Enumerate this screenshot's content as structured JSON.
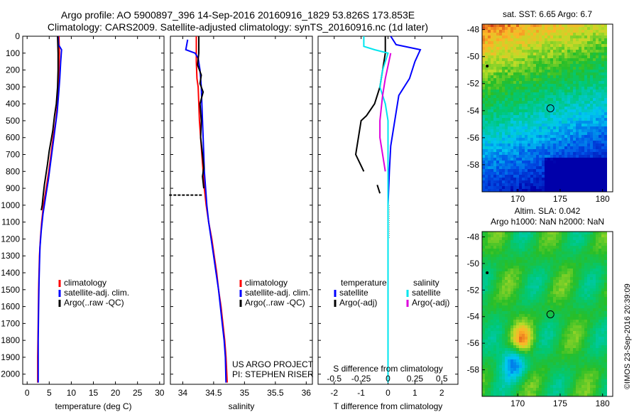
{
  "header": {
    "line1": "Argo profile: AO 5900897_396 14-Sep-2016 20160916_1829 53.826S 173.853E",
    "line2": "Climatology: CARS2009. Satellite-adjusted climatology: synTS_20160916.nc (1d later)"
  },
  "credit": {
    "project": "US ARGO PROJECT",
    "pi": "PI: STEPHEN RISER",
    "stamp": "©IMOS 23-Sep-2016 20:39:09"
  },
  "colors": {
    "climatology": "#ff0000",
    "satellite": "#0000ff",
    "argo": "#000000",
    "sat_sal": "#00e5ee",
    "argo_sal": "#dd00dd"
  },
  "chart_data": [
    {
      "type": "line",
      "id": "temperature",
      "xlabel": "temperature (deg C)",
      "ylabel": "",
      "xlim": [
        -1,
        31
      ],
      "ylim": [
        2060,
        0
      ],
      "xticks": [
        0,
        5,
        10,
        15,
        20,
        25,
        30
      ],
      "yticks": [
        0,
        100,
        200,
        300,
        400,
        500,
        600,
        700,
        800,
        900,
        1000,
        1100,
        1200,
        1300,
        1400,
        1500,
        1600,
        1700,
        1800,
        1900,
        2000
      ],
      "legend": [
        "climatology",
        "satellite-adj. clim.",
        "Argo(..raw -QC)"
      ],
      "series": [
        {
          "name": "climatology",
          "color": "#ff0000",
          "points": [
            [
              7.2,
              0
            ],
            [
              7.3,
              100
            ],
            [
              7.2,
              200
            ],
            [
              7.1,
              300
            ],
            [
              6.9,
              400
            ],
            [
              6.5,
              500
            ],
            [
              5.9,
              600
            ],
            [
              5.4,
              700
            ],
            [
              4.9,
              800
            ],
            [
              4.3,
              900
            ],
            [
              3.7,
              1000
            ],
            [
              3.3,
              1100
            ],
            [
              3.0,
              1200
            ],
            [
              2.8,
              1300
            ],
            [
              2.7,
              1400
            ],
            [
              2.6,
              1500
            ],
            [
              2.5,
              1700
            ],
            [
              2.4,
              1900
            ],
            [
              2.4,
              2050
            ]
          ]
        },
        {
          "name": "satellite-adj. clim.",
          "color": "#0000ff",
          "points": [
            [
              7.0,
              0
            ],
            [
              7.1,
              50
            ],
            [
              7.8,
              80
            ],
            [
              7.6,
              150
            ],
            [
              7.4,
              250
            ],
            [
              7.1,
              350
            ],
            [
              6.8,
              450
            ],
            [
              6.3,
              550
            ],
            [
              5.8,
              650
            ],
            [
              5.3,
              750
            ],
            [
              4.8,
              850
            ],
            [
              4.2,
              950
            ],
            [
              3.6,
              1050
            ],
            [
              3.2,
              1150
            ],
            [
              2.9,
              1250
            ],
            [
              2.8,
              1350
            ],
            [
              2.7,
              1450
            ],
            [
              2.6,
              1600
            ],
            [
              2.5,
              1800
            ],
            [
              2.5,
              2050
            ]
          ]
        },
        {
          "name": "Argo(..raw -QC)",
          "color": "#000000",
          "points": [
            [
              6.9,
              0
            ],
            [
              7.0,
              100
            ],
            [
              7.0,
              200
            ],
            [
              6.9,
              300
            ],
            [
              6.6,
              400
            ],
            [
              6.2,
              470
            ],
            [
              5.8,
              560
            ],
            [
              5.4,
              620
            ],
            [
              5.0,
              680
            ],
            [
              4.6,
              760
            ],
            [
              4.2,
              830
            ],
            [
              3.9,
              880
            ],
            [
              3.6,
              950
            ],
            [
              3.4,
              1000
            ],
            [
              3.2,
              1030
            ]
          ]
        }
      ]
    },
    {
      "type": "line",
      "id": "salinity",
      "xlabel": "salinity",
      "ylabel": "",
      "xlim": [
        33.8,
        36.1
      ],
      "ylim": [
        2060,
        0
      ],
      "xticks": [
        34,
        34.5,
        35,
        35.5,
        36
      ],
      "legend": [
        "climatology",
        "satellite-adj. clim.",
        "Argo(..raw -QC)"
      ],
      "series": [
        {
          "name": "climatology",
          "color": "#ff0000",
          "points": [
            [
              34.22,
              0
            ],
            [
              34.22,
              100
            ],
            [
              34.22,
              150
            ],
            [
              34.23,
              250
            ],
            [
              34.25,
              300
            ],
            [
              34.26,
              400
            ],
            [
              34.27,
              500
            ],
            [
              34.29,
              600
            ],
            [
              34.31,
              700
            ],
            [
              34.33,
              800
            ],
            [
              34.35,
              900
            ],
            [
              34.38,
              1000
            ],
            [
              34.42,
              1100
            ],
            [
              34.47,
              1200
            ],
            [
              34.51,
              1300
            ],
            [
              34.55,
              1400
            ],
            [
              34.58,
              1500
            ],
            [
              34.62,
              1600
            ],
            [
              34.65,
              1700
            ],
            [
              34.68,
              1800
            ],
            [
              34.7,
              1900
            ],
            [
              34.72,
              2050
            ]
          ]
        },
        {
          "name": "satellite-adj. clim.",
          "color": "#0000ff",
          "points": [
            [
              34.08,
              20
            ],
            [
              34.05,
              80
            ],
            [
              34.2,
              100
            ],
            [
              34.25,
              130
            ],
            [
              34.28,
              200
            ],
            [
              34.3,
              300
            ],
            [
              34.31,
              400
            ],
            [
              34.32,
              500
            ],
            [
              34.33,
              600
            ],
            [
              34.34,
              700
            ],
            [
              34.35,
              800
            ],
            [
              34.37,
              900
            ],
            [
              34.39,
              1000
            ],
            [
              34.42,
              1100
            ],
            [
              34.46,
              1200
            ],
            [
              34.5,
              1300
            ],
            [
              34.54,
              1400
            ],
            [
              34.58,
              1500
            ],
            [
              34.61,
              1600
            ],
            [
              34.64,
              1700
            ],
            [
              34.67,
              1800
            ],
            [
              34.69,
              1900
            ],
            [
              34.7,
              2050
            ]
          ]
        },
        {
          "name": "Argo(..raw -QC)",
          "color": "#000000",
          "points": [
            [
              34.26,
              0
            ],
            [
              34.26,
              100
            ],
            [
              34.24,
              170
            ],
            [
              34.3,
              230
            ],
            [
              34.28,
              280
            ],
            [
              34.33,
              330
            ],
            [
              34.28,
              400
            ],
            [
              34.3,
              500
            ],
            [
              34.29,
              600
            ],
            [
              34.32,
              700
            ],
            [
              34.34,
              780
            ],
            [
              34.32,
              830
            ],
            [
              34.34,
              900
            ]
          ]
        },
        {
          "name": "Argo-outlier",
          "color": "#000000",
          "points": [
            [
              33.78,
              940
            ],
            [
              33.95,
              940
            ],
            [
              34.1,
              940
            ],
            [
              34.32,
              940
            ]
          ]
        }
      ]
    },
    {
      "type": "line",
      "id": "difference",
      "xlabel": "T difference from climatology",
      "xlabel2": "S difference from climatology",
      "ylabel": "",
      "xlim": [
        -2.6,
        2.6
      ],
      "ylim": [
        2060,
        0
      ],
      "xticks": [
        -2,
        -1,
        0,
        1,
        2
      ],
      "xticks2": [
        "-0.5",
        "-0.25",
        "0",
        "0.25",
        "0.5"
      ],
      "xticks2_pos": [
        -2,
        -1,
        0,
        1,
        2
      ],
      "legend_headers": [
        "temperature",
        "salinity"
      ],
      "legend": [
        "satellite",
        "Argo(-adj)",
        "satellite",
        "Argo(-adj)"
      ],
      "series": [
        {
          "name": "satellite",
          "color": "#0000ff",
          "points": [
            [
              0.1,
              0
            ],
            [
              0.3,
              50
            ],
            [
              1.2,
              80
            ],
            [
              1.0,
              150
            ],
            [
              0.8,
              250
            ],
            [
              0.4,
              350
            ],
            [
              0.3,
              450
            ],
            [
              0.2,
              550
            ],
            [
              0.1,
              650
            ],
            [
              0.05,
              800
            ],
            [
              0,
              1000
            ],
            [
              0,
              1200
            ],
            [
              0,
              1400
            ],
            [
              0,
              1600
            ],
            [
              0,
              1800
            ],
            [
              0,
              2050
            ]
          ]
        },
        {
          "name": "Argo(-adj)",
          "color": "#000000",
          "points": [
            [
              -0.1,
              0
            ],
            [
              -0.1,
              100
            ],
            [
              -0.2,
              200
            ],
            [
              -0.3,
              300
            ],
            [
              -0.5,
              400
            ],
            [
              -0.8,
              470
            ],
            [
              -1.0,
              500
            ],
            [
              -1.1,
              600
            ],
            [
              -1.2,
              700
            ],
            [
              -0.9,
              800
            ]
          ]
        },
        {
          "name": "Argo-adj-b",
          "color": "#000000",
          "points": [
            [
              -0.4,
              880
            ],
            [
              -0.3,
              930
            ]
          ]
        },
        {
          "name": "satellite",
          "color": "#00e5ee",
          "points": [
            [
              -0.9,
              0
            ],
            [
              -0.9,
              60
            ],
            [
              -0.5,
              80
            ],
            [
              0.0,
              100
            ],
            [
              -0.2,
              200
            ],
            [
              -0.3,
              300
            ],
            [
              -0.1,
              400
            ],
            [
              0,
              500
            ],
            [
              0,
              700
            ],
            [
              0,
              900
            ],
            [
              0,
              1200
            ],
            [
              0,
              1600
            ],
            [
              0,
              2050
            ]
          ]
        },
        {
          "name": "Argo(-adj)",
          "color": "#dd00dd",
          "points": [
            [
              0.1,
              100
            ],
            [
              -0.1,
              250
            ],
            [
              -0.2,
              350
            ],
            [
              -0.3,
              500
            ],
            [
              -0.3,
              600
            ],
            [
              -0.2,
              700
            ],
            [
              -0.1,
              800
            ]
          ]
        }
      ]
    },
    {
      "type": "heatmap",
      "id": "sst-map",
      "title": "sat. SST: 6.65 Argo: 6.7",
      "xticks": [
        170,
        175,
        180
      ],
      "yticks": [
        -48,
        -50,
        -52,
        -54,
        -56,
        -58
      ],
      "xlim": [
        165.8,
        181.2
      ],
      "ylim": [
        -60,
        -47.6
      ],
      "marker": [
        173.853,
        -53.826
      ]
    },
    {
      "type": "heatmap",
      "id": "sla-map",
      "title": "Altim. SLA: 0.042",
      "subtitle": "Argo h1000: NaN h2000: NaN",
      "xticks": [
        170,
        175,
        180
      ],
      "yticks": [
        -48,
        -50,
        -52,
        -54,
        -56,
        -58
      ],
      "xlim": [
        165.8,
        181.2
      ],
      "ylim": [
        -60,
        -47.6
      ],
      "marker": [
        173.853,
        -53.826
      ]
    }
  ]
}
